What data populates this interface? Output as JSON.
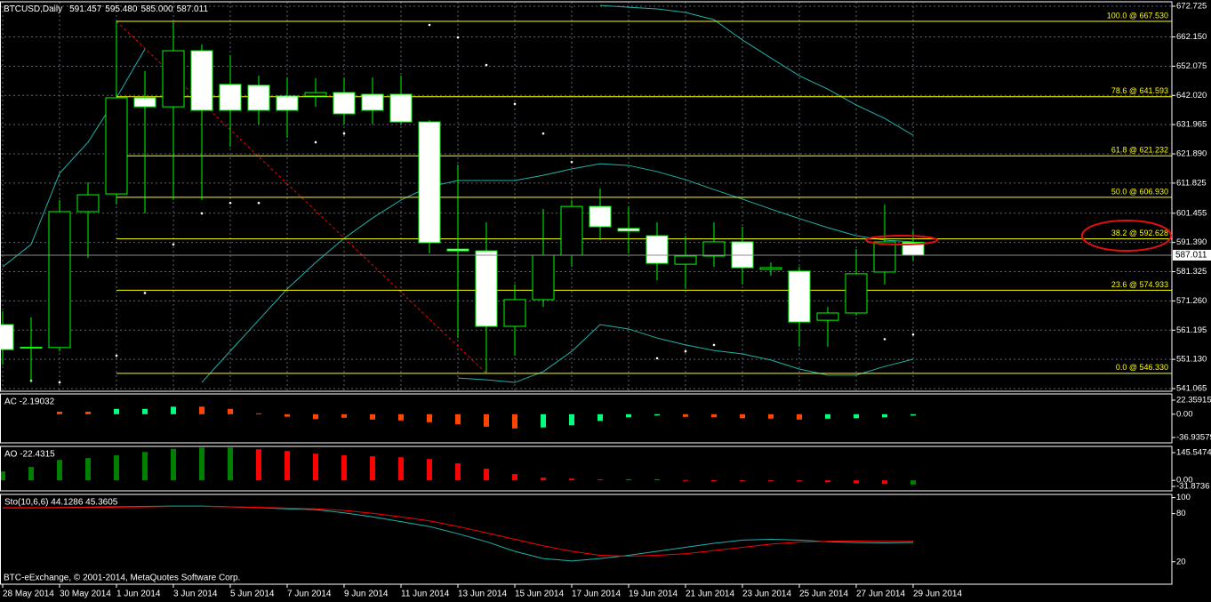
{
  "chart_data": [
    {
      "type": "candlestick",
      "title": "BTCUSD,Daily",
      "quote": [
        "591.457",
        "595.480",
        "585.000",
        "587.011"
      ],
      "note": "BTC-eExchange, © 2001-2014, MetaQuotes Software Corp.",
      "categories": [
        "28 May 2014",
        null,
        "30 May 2014",
        null,
        "1 Jun 2014",
        null,
        "3 Jun 2014",
        null,
        "5 Jun 2014",
        null,
        "7 Jun 2014",
        null,
        "9 Jun 2014",
        null,
        "11 Jun 2014",
        null,
        "13 Jun 2014",
        null,
        "15 Jun 2014",
        null,
        "17 Jun 2014",
        null,
        "19 Jun 2014",
        null,
        "21 Jun 2014",
        null,
        "23 Jun 2014",
        null,
        "25 Jun 2014",
        null,
        "27 Jun 2014",
        null,
        "29 Jun 2014"
      ],
      "open": [
        563.1,
        555.0,
        555.2,
        602.0,
        608.1,
        641.2,
        638.1,
        657.4,
        645.8,
        645.5,
        641.8,
        641.8,
        643.0,
        642.4,
        642.4,
        632.9,
        589.1,
        588.5,
        562.5,
        571.7,
        587.0,
        603.8,
        596.2,
        593.7,
        583.9,
        586.7,
        591.6,
        582.1,
        581.5,
        564.6,
        567.1,
        581.2,
        591.457
      ],
      "high": [
        567.7,
        565.6,
        606.0,
        612.1,
        667.53,
        650.4,
        667.2,
        659.6,
        655.9,
        648.8,
        648.2,
        647.9,
        647.9,
        648.2,
        648.8,
        633.5,
        618.2,
        598.3,
        576.9,
        602.9,
        606.0,
        610.0,
        603.8,
        598.3,
        593.7,
        598.3,
        596.8,
        584.5,
        583.0,
        569.2,
        589.1,
        604.4,
        595.48
      ],
      "low": [
        549.3,
        543.2,
        553.9,
        586.1,
        604.4,
        601.4,
        606.0,
        606.0,
        624.3,
        632.0,
        627.4,
        638.1,
        632.0,
        632.0,
        632.0,
        587.6,
        558.5,
        546.33,
        552.4,
        569.2,
        583.0,
        592.2,
        587.6,
        578.4,
        575.4,
        583.0,
        576.9,
        579.9,
        555.5,
        555.5,
        566.2,
        576.9,
        585.0
      ],
      "close": [
        554.5,
        555.3,
        602.0,
        607.8,
        641.2,
        638.1,
        657.4,
        636.9,
        636.9,
        636.9,
        636.9,
        643.0,
        635.7,
        636.9,
        632.9,
        591.3,
        588.5,
        562.5,
        571.7,
        587.0,
        603.8,
        596.8,
        595.3,
        584.2,
        586.7,
        591.6,
        582.7,
        582.7,
        564.0,
        567.1,
        580.6,
        591.6,
        587.011
      ],
      "up_color": "#000000",
      "down_color": "#ffffff",
      "wick_color": "#00ff00",
      "overlays": [
        {
          "color": "#20b2aa",
          "values": [
            583.0,
            590.7,
            615.2,
            625.9,
            641.2,
            658.0,
            null,
            null,
            null,
            null,
            null,
            null,
            null,
            null,
            null,
            null,
            null,
            null,
            null,
            null,
            null,
            673.0,
            672.4,
            671.8,
            670.6,
            668.1,
            661.1,
            654.9,
            648.8,
            644.2,
            638.7,
            634.1,
            628.3
          ]
        },
        {
          "color": "#20b2aa",
          "values": [
            null,
            null,
            null,
            null,
            null,
            null,
            null,
            543.2,
            554.0,
            564.7,
            575.4,
            584.5,
            592.8,
            599.8,
            606.0,
            610.6,
            612.7,
            612.7,
            612.7,
            614.5,
            616.7,
            618.5,
            617.9,
            615.8,
            613.0,
            609.6,
            606.3,
            602.9,
            599.6,
            596.5,
            593.7,
            592.2,
            591.6
          ]
        },
        {
          "color": "#20b2aa",
          "values": [
            null,
            null,
            null,
            null,
            null,
            null,
            null,
            null,
            null,
            null,
            null,
            null,
            null,
            null,
            null,
            null,
            544.7,
            544.1,
            543.2,
            546.9,
            553.9,
            563.1,
            561.6,
            558.5,
            556.1,
            554.2,
            553.0,
            550.9,
            547.8,
            545.7,
            545.7,
            548.7,
            551.2
          ]
        }
      ],
      "sar": {
        "color": "#ffffff",
        "values": [
          null,
          543.8,
          543.2,
          null,
          552.4,
          574.0,
          590.7,
          601.4,
          605.0,
          605.0,
          null,
          625.9,
          628.9,
          null,
          null,
          666.3,
          662.0,
          652.5,
          639.1,
          628.9,
          619.1,
          null,
          null,
          551.5,
          553.9,
          556.1,
          null,
          null,
          null,
          null,
          null,
          558.1,
          559.7
        ]
      },
      "levels": [
        {
          "value": 667.53,
          "label": "100.0 @ 667.530"
        },
        {
          "value": 641.593,
          "label": "78.6 @ 641.593"
        },
        {
          "value": 621.232,
          "label": "61.8 @ 621.232"
        },
        {
          "value": 606.93,
          "label": "50.0 @ 606.930"
        },
        {
          "value": 592.628,
          "label": "38.2 @ 592.628"
        },
        {
          "value": 574.933,
          "label": "23.6 @ 574.933"
        },
        {
          "value": 546.33,
          "label": "0.0 @ 546.330"
        }
      ],
      "levels_color": "#ffff00",
      "trendline_color": "#ff0000",
      "ylim": [
        540.15,
        674.26
      ],
      "yticks": [
        672.725,
        {
          "value": 662.15,
          "label": "662.150"
        },
        652.075,
        {
          "value": 642.02,
          "label": "642.020"
        },
        631.965,
        {
          "value": 621.89,
          "label": "621.890"
        },
        611.825,
        601.455,
        {
          "value": 591.39,
          "label": "591.390"
        },
        581.325,
        {
          "value": 571.26,
          "label": "571.260"
        },
        561.195,
        {
          "value": 551.13,
          "label": "551.130"
        },
        541.065
      ],
      "grid": true
    },
    {
      "type": "bar",
      "title": "AC -2.19032",
      "values": [
        null,
        null,
        4.0,
        4.0,
        8.5,
        8.5,
        12.0,
        12.0,
        8.5,
        1.4,
        -4.0,
        -7.8,
        -5.6,
        -8.5,
        -9.9,
        -12.7,
        -16.0,
        -19.8,
        -22.6,
        -21.0,
        -17.6,
        -10.6,
        -4.9,
        -2.0,
        -4.2,
        -4.9,
        -6.4,
        -7.0,
        -8.5,
        -7.0,
        -6.4,
        -4.9,
        -2.19032
      ],
      "colors": [
        null,
        null,
        "#ff4500",
        "#ff4500",
        "#00ff7f",
        "#00ff7f",
        "#00ff7f",
        "#ff4500",
        "#ff4500",
        "#ff4500",
        "#ff4500",
        "#ff4500",
        "#ff4500",
        "#ff4500",
        "#ff4500",
        "#ff4500",
        "#ff4500",
        "#ff4500",
        "#ff4500",
        "#00ff7f",
        "#00ff7f",
        "#00ff7f",
        "#00ff7f",
        "#00ff7f",
        "#ff4500",
        "#ff4500",
        "#ff4500",
        "#ff4500",
        "#ff4500",
        "#00ff7f",
        "#00ff7f",
        "#00ff7f",
        "#00ff7f"
      ],
      "ylim": [
        -45.4,
        32.2
      ],
      "yticks": [
        22.35915,
        {
          "value": 0,
          "label": "0.00"
        },
        -36.93579
      ]
    },
    {
      "type": "bar",
      "title": "AO -22.4315",
      "values": [
        46.7,
        70,
        107,
        117,
        131,
        149,
        165,
        172,
        172,
        163,
        154,
        140,
        131,
        126,
        121,
        112,
        89,
        61,
        33,
        14,
        9,
        5,
        6,
        6,
        2,
        1,
        -1,
        -3,
        -6,
        -10,
        -15,
        -19,
        -22.4315
      ],
      "colors": [
        "#008000",
        "#008000",
        "#008000",
        "#008000",
        "#008000",
        "#008000",
        "#008000",
        "#008000",
        "#008000",
        "#ff0000",
        "#ff0000",
        "#ff0000",
        "#ff0000",
        "#ff0000",
        "#ff0000",
        "#ff0000",
        "#ff0000",
        "#ff0000",
        "#ff0000",
        "#ff0000",
        "#ff0000",
        "#ff0000",
        "#008000",
        "#008000",
        "#ff0000",
        "#ff0000",
        "#ff0000",
        "#ff0000",
        "#ff0000",
        "#ff0000",
        "#ff0000",
        "#ff0000",
        "#008000"
      ],
      "ylim": [
        -55.2,
        178.2
      ],
      "yticks": [
        145.5474,
        {
          "value": 0,
          "label": "0.00"
        },
        -31.8736
      ]
    },
    {
      "type": "line",
      "title": "Sto(10,6,6) 44.1286 45.3605",
      "series": [
        {
          "color": "#20b2aa",
          "values": [
            87.2,
            87.2,
            87.5,
            88,
            88.5,
            89,
            89.4,
            89.4,
            88.5,
            87.5,
            86,
            85,
            81,
            76,
            70,
            64,
            55,
            45,
            33,
            24,
            21,
            24,
            28,
            33,
            38,
            43,
            47,
            48,
            47,
            45,
            44,
            43.5,
            44.1286
          ]
        },
        {
          "color": "#ff0000",
          "values": [
            87.5,
            87.5,
            87.6,
            87.8,
            88,
            88.5,
            89,
            89,
            88.5,
            87.8,
            87,
            86,
            84,
            80.5,
            76,
            71,
            64,
            56,
            48,
            40,
            33,
            28,
            27,
            28,
            30,
            34,
            38,
            42,
            44.5,
            45.5,
            45.8,
            45.5,
            45.3605
          ]
        }
      ],
      "ylim": [
        -8,
        104
      ],
      "yticks": [
        100,
        80,
        20
      ]
    }
  ]
}
